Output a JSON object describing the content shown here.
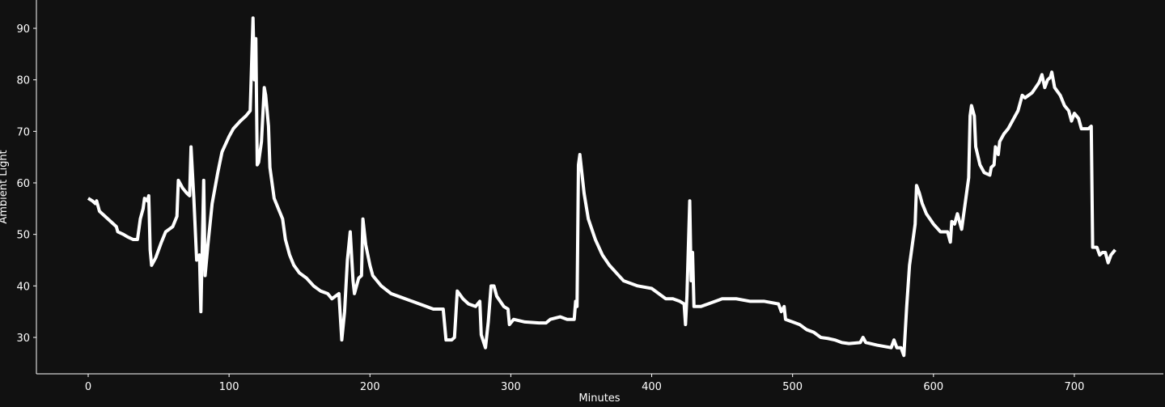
{
  "chart_data": {
    "type": "line",
    "x_label": "Minutes",
    "y_label": "Ambient Light",
    "color": "#ffffff",
    "x": [
      0,
      3,
      5,
      6,
      8,
      12,
      16,
      20,
      21,
      25,
      28,
      32,
      35,
      37,
      39,
      40,
      42,
      43,
      44,
      45,
      48,
      52,
      55,
      60,
      63,
      64,
      67,
      70,
      72,
      73,
      75,
      77,
      79,
      80,
      82,
      83,
      85,
      88,
      92,
      95,
      100,
      103,
      108,
      112,
      115,
      117,
      118,
      119,
      120,
      121,
      123,
      125,
      126,
      128,
      129,
      132,
      135,
      138,
      140,
      143,
      146,
      150,
      155,
      160,
      165,
      170,
      173,
      178,
      180,
      182,
      184,
      186,
      188,
      189,
      192,
      194,
      195,
      197,
      200,
      202,
      208,
      215,
      220,
      230,
      240,
      245,
      250,
      252,
      254,
      258,
      260,
      262,
      266,
      270,
      275,
      278,
      279,
      282,
      284,
      286,
      288,
      290,
      295,
      298,
      299,
      302,
      310,
      320,
      325,
      328,
      335,
      340,
      345,
      346,
      347,
      348,
      349,
      352,
      355,
      360,
      365,
      370,
      375,
      380,
      390,
      400,
      405,
      410,
      415,
      420,
      423,
      424,
      425,
      427,
      428,
      429,
      430,
      435,
      440,
      450,
      460,
      470,
      480,
      490,
      492,
      494,
      495,
      500,
      505,
      510,
      515,
      520,
      525,
      530,
      535,
      540,
      548,
      550,
      552,
      560,
      570,
      572,
      574,
      577,
      579,
      581,
      583,
      585,
      587,
      588,
      590,
      592,
      595,
      600,
      605,
      610,
      612,
      613,
      615,
      617,
      620,
      622,
      625,
      626,
      627,
      629,
      630,
      633,
      636,
      640,
      641,
      643,
      644,
      646,
      647,
      650,
      653,
      657,
      660,
      663,
      665,
      670,
      675,
      677,
      679,
      681,
      683,
      684,
      686,
      690,
      693,
      696,
      698,
      700,
      703,
      705,
      710,
      712,
      713,
      716,
      718,
      720,
      722,
      724,
      726,
      729
    ],
    "values": [
      57,
      56.5,
      56,
      56.5,
      54.5,
      53.5,
      52.5,
      51.5,
      50.5,
      50,
      49.5,
      49,
      49,
      53,
      55,
      57,
      56.5,
      57.5,
      47,
      44,
      45.5,
      48.5,
      50.5,
      51.5,
      53.5,
      60.5,
      59,
      58,
      57.5,
      67,
      57,
      45,
      46,
      35,
      60.5,
      42,
      48,
      56,
      62,
      66,
      69,
      70.5,
      72,
      73,
      74,
      92,
      80,
      88,
      63.5,
      64,
      68,
      78.5,
      77,
      71,
      63,
      57,
      55,
      53,
      49,
      46,
      44,
      42.5,
      41.5,
      40,
      39,
      38.5,
      37.5,
      38.5,
      29.5,
      35,
      45,
      50.5,
      41,
      38.5,
      41.5,
      42,
      53,
      48,
      44,
      42,
      40,
      38.5,
      38,
      37,
      36,
      35.5,
      35.5,
      35.5,
      29.5,
      29.5,
      30,
      39,
      37.5,
      36.5,
      36,
      37,
      30.5,
      28,
      33,
      40,
      40,
      38,
      36,
      35.5,
      32.5,
      33.5,
      33,
      32.8,
      32.8,
      33.5,
      34,
      33.5,
      33.5,
      37,
      36,
      63.5,
      65.5,
      58,
      53,
      49,
      46,
      44,
      42.5,
      41,
      40,
      39.5,
      38.5,
      37.5,
      37.5,
      37,
      36.5,
      32.5,
      38,
      56.5,
      41,
      46.5,
      36,
      36,
      36.5,
      37.5,
      37.5,
      37,
      37,
      36.5,
      35,
      36,
      33.5,
      33,
      32.5,
      31.5,
      31,
      30,
      29.8,
      29.5,
      29,
      28.8,
      29,
      30,
      29,
      28.5,
      28,
      29.5,
      28,
      28,
      26.5,
      36,
      44,
      48,
      52,
      59.5,
      58,
      56,
      54,
      52,
      50.5,
      50.5,
      48.5,
      52.5,
      52,
      54,
      51,
      55,
      61,
      73,
      75,
      73,
      67,
      63.5,
      62,
      61.5,
      63,
      63.5,
      67,
      65.5,
      68,
      69.5,
      70.5,
      72.5,
      74,
      77,
      76.5,
      77.5,
      79.5,
      81,
      78.5,
      80,
      80.5,
      81.5,
      78.5,
      77,
      75,
      74,
      72,
      73.5,
      72.5,
      70.5,
      70.5,
      71,
      47.5,
      47.5,
      46,
      46.5,
      46.5,
      44.5,
      46,
      47
    ],
    "xlim": [
      -36.75,
      763.2
    ],
    "ylim": [
      22.93,
      95.5
    ],
    "xticks": [
      0,
      100,
      200,
      300,
      400,
      500,
      600,
      700
    ],
    "yticks": [
      30,
      40,
      50,
      60,
      70,
      80,
      90
    ]
  }
}
